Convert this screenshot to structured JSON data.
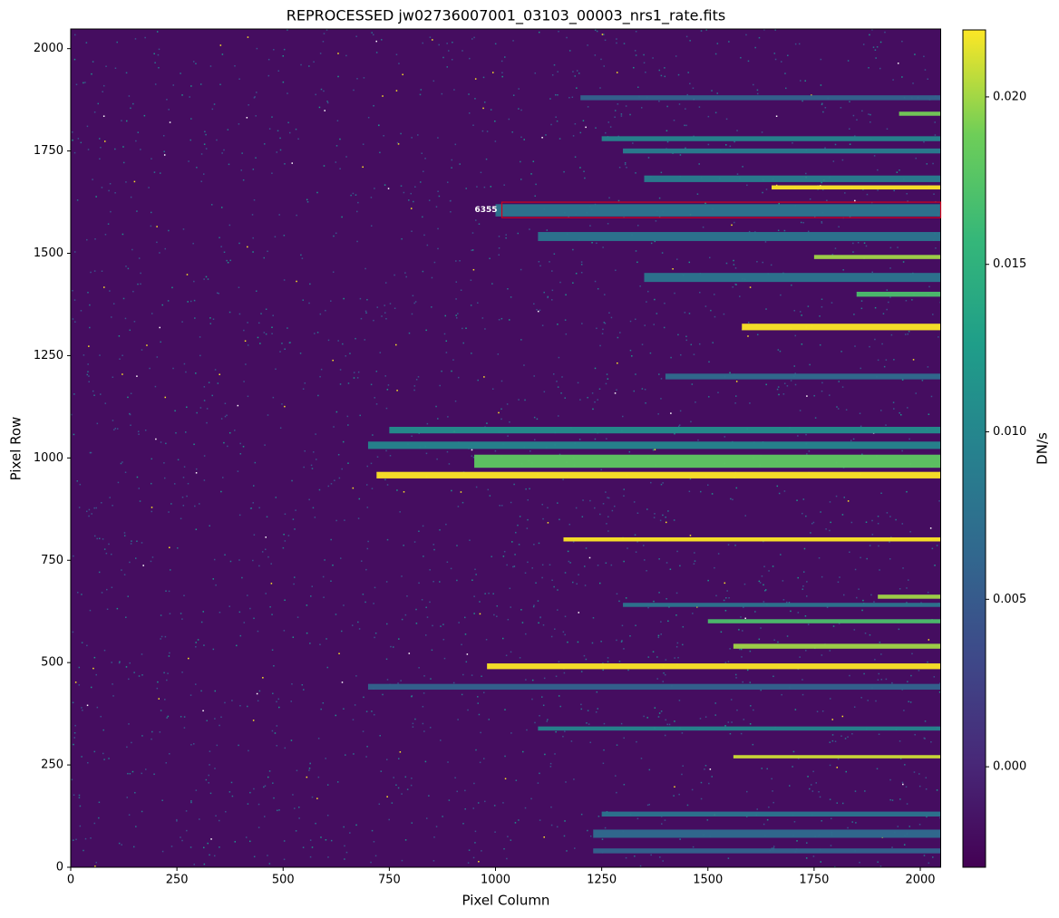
{
  "chart_data": {
    "type": "image",
    "title": "REPROCESSED jw02736007001_03103_00003_nrs1_rate.fits",
    "x_label": "Pixel Column",
    "y_label": "Pixel Row",
    "colorbar_label": "DN/s",
    "colormap": "viridis",
    "xlim": [
      0,
      2048
    ],
    "ylim": [
      0,
      2048
    ],
    "clim": [
      -0.003,
      0.022
    ],
    "xticks": [
      0,
      250,
      500,
      750,
      1000,
      1250,
      1500,
      1750,
      2000
    ],
    "yticks": [
      0,
      250,
      500,
      750,
      1000,
      1250,
      1500,
      1750,
      2000
    ],
    "cticks": [
      {
        "value": 0,
        "label": "0.000"
      },
      {
        "value": 0.005,
        "label": "0.005"
      },
      {
        "value": 0.01,
        "label": "0.010"
      },
      {
        "value": 0.015,
        "label": "0.015"
      },
      {
        "value": 0.02,
        "label": "0.020"
      }
    ],
    "background_value": -0.002,
    "traces": [
      {
        "x": [
          720,
          2048
        ],
        "rows": [
          950,
          966
        ],
        "value": 0.022
      },
      {
        "x": [
          950,
          2048
        ],
        "rows": [
          976,
          1008
        ],
        "value": 0.018
      },
      {
        "x": [
          700,
          2048
        ],
        "rows": [
          1022,
          1040
        ],
        "value": 0.01
      },
      {
        "x": [
          750,
          2048
        ],
        "rows": [
          1060,
          1076
        ],
        "value": 0.011
      },
      {
        "x": [
          1580,
          2048
        ],
        "rows": [
          1312,
          1328
        ],
        "value": 0.022
      },
      {
        "x": [
          1650,
          2048
        ],
        "rows": [
          1656,
          1666
        ],
        "value": 0.022
      },
      {
        "x": [
          1750,
          2048
        ],
        "rows": [
          1486,
          1496
        ],
        "value": 0.02
      },
      {
        "x": [
          1160,
          2048
        ],
        "rows": [
          796,
          806
        ],
        "value": 0.022
      },
      {
        "x": [
          980,
          2048
        ],
        "rows": [
          484,
          498
        ],
        "value": 0.022
      },
      {
        "x": [
          1560,
          2048
        ],
        "rows": [
          534,
          546
        ],
        "value": 0.02
      },
      {
        "x": [
          1560,
          2048
        ],
        "rows": [
          266,
          274
        ],
        "value": 0.021
      },
      {
        "x": [
          1950,
          2048
        ],
        "rows": [
          1836,
          1846
        ],
        "value": 0.019
      },
      {
        "x": [
          1850,
          2048
        ],
        "rows": [
          1394,
          1406
        ],
        "value": 0.017
      },
      {
        "x": [
          1000,
          2048
        ],
        "rows": [
          1590,
          1620
        ],
        "value": 0.008
      },
      {
        "x": [
          1100,
          2048
        ],
        "rows": [
          1530,
          1552
        ],
        "value": 0.008
      },
      {
        "x": [
          1250,
          2048
        ],
        "rows": [
          1774,
          1786
        ],
        "value": 0.01
      },
      {
        "x": [
          1200,
          2048
        ],
        "rows": [
          1874,
          1886
        ],
        "value": 0.006
      },
      {
        "x": [
          1350,
          2048
        ],
        "rows": [
          1430,
          1452
        ],
        "value": 0.008
      },
      {
        "x": [
          1400,
          2048
        ],
        "rows": [
          1192,
          1206
        ],
        "value": 0.007
      },
      {
        "x": [
          1300,
          2048
        ],
        "rows": [
          636,
          646
        ],
        "value": 0.008
      },
      {
        "x": [
          700,
          2048
        ],
        "rows": [
          434,
          448
        ],
        "value": 0.006
      },
      {
        "x": [
          1100,
          2048
        ],
        "rows": [
          334,
          344
        ],
        "value": 0.01
      },
      {
        "x": [
          1230,
          2048
        ],
        "rows": [
          72,
          92
        ],
        "value": 0.007
      },
      {
        "x": [
          1230,
          2048
        ],
        "rows": [
          34,
          46
        ],
        "value": 0.006
      },
      {
        "x": [
          1250,
          2048
        ],
        "rows": [
          124,
          136
        ],
        "value": 0.008
      },
      {
        "x": [
          1500,
          2048
        ],
        "rows": [
          596,
          606
        ],
        "value": 0.017
      },
      {
        "x": [
          1900,
          2048
        ],
        "rows": [
          656,
          666
        ],
        "value": 0.02
      },
      {
        "x": [
          1300,
          2048
        ],
        "rows": [
          1744,
          1756
        ],
        "value": 0.009
      },
      {
        "x": [
          1350,
          2048
        ],
        "rows": [
          1674,
          1690
        ],
        "value": 0.009
      }
    ],
    "annotation": {
      "text": "6355",
      "x": [
        1015,
        2048
      ],
      "y": [
        1587,
        1625
      ]
    }
  }
}
